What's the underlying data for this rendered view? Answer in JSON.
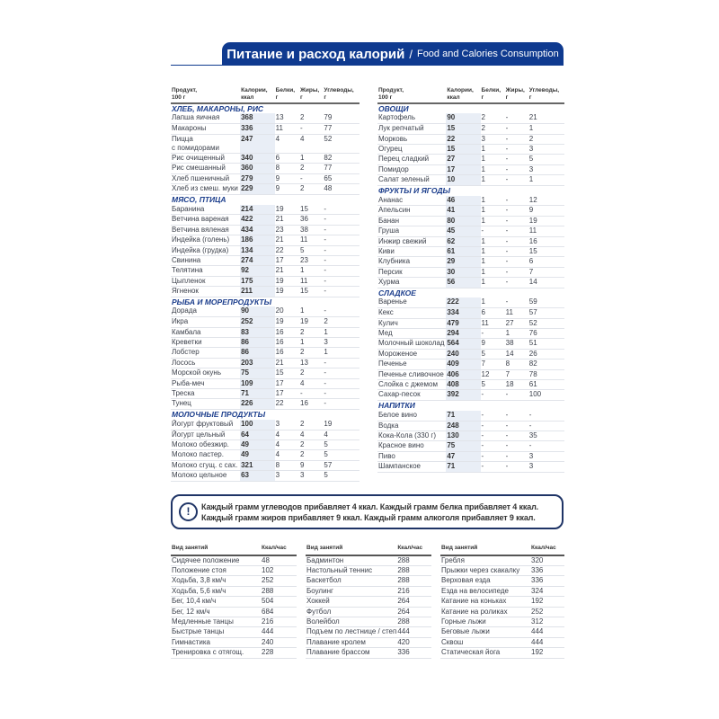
{
  "header": {
    "title_ru": "Питание и расход калорий",
    "separator": "/",
    "title_en": "Food and Calories Consumption"
  },
  "food_columns": [
    "Продукт,\n100 г",
    "Калории,\nккал",
    "Белки,\nг",
    "Жиры,\nг",
    "Углеводы,\nг"
  ],
  "food": {
    "left": [
      {
        "title": "ХЛЕБ, МАКАРОНЫ, РИС",
        "items": [
          [
            "Лапша яичная",
            "368",
            "13",
            "2",
            "79"
          ],
          [
            "Макароны",
            "336",
            "11",
            "-",
            "77"
          ],
          [
            "Пицца\nс помидорами",
            "247",
            "4",
            "4",
            "52"
          ],
          [
            "Рис очищенный",
            "340",
            "6",
            "1",
            "82"
          ],
          [
            "Рис смешанный",
            "360",
            "8",
            "2",
            "77"
          ],
          [
            "Хлеб пшеничный",
            "279",
            "9",
            "-",
            "65"
          ],
          [
            "Хлеб из смеш. муки",
            "229",
            "9",
            "2",
            "48"
          ]
        ]
      },
      {
        "title": "МЯСО, ПТИЦА",
        "items": [
          [
            "Баранина",
            "214",
            "19",
            "15",
            "-"
          ],
          [
            "Ветчина вареная",
            "422",
            "21",
            "36",
            "-"
          ],
          [
            "Ветчина вяленая",
            "434",
            "23",
            "38",
            "-"
          ],
          [
            "Индейка (голень)",
            "186",
            "21",
            "11",
            "-"
          ],
          [
            "Индейка (грудка)",
            "134",
            "22",
            "5",
            "-"
          ],
          [
            "Свинина",
            "274",
            "17",
            "23",
            "-"
          ],
          [
            "Телятина",
            "92",
            "21",
            "1",
            "-"
          ],
          [
            "Цыпленок",
            "175",
            "19",
            "11",
            "-"
          ],
          [
            "Ягненок",
            "211",
            "19",
            "15",
            "-"
          ]
        ]
      },
      {
        "title": "РЫБА И МОРЕПРОДУКТЫ",
        "items": [
          [
            "Дорада",
            "90",
            "20",
            "1",
            "-"
          ],
          [
            "Икра",
            "252",
            "19",
            "19",
            "2"
          ],
          [
            "Камбала",
            "83",
            "16",
            "2",
            "1"
          ],
          [
            "Креветки",
            "86",
            "16",
            "1",
            "3"
          ],
          [
            "Лобстер",
            "86",
            "16",
            "2",
            "1"
          ],
          [
            "Лосось",
            "203",
            "21",
            "13",
            "-"
          ],
          [
            "Морской окунь",
            "75",
            "15",
            "2",
            "-"
          ],
          [
            "Рыба-меч",
            "109",
            "17",
            "4",
            "-"
          ],
          [
            "Треска",
            "71",
            "17",
            "-",
            "-"
          ],
          [
            "Тунец",
            "226",
            "22",
            "16",
            "-"
          ]
        ]
      },
      {
        "title": "МОЛОЧНЫЕ ПРОДУКТЫ",
        "items": [
          [
            "Йогурт фруктовый",
            "100",
            "3",
            "2",
            "19"
          ],
          [
            "Йогурт цельный",
            "64",
            "4",
            "4",
            "4"
          ],
          [
            "Молоко обезжир.",
            "49",
            "4",
            "2",
            "5"
          ],
          [
            "Молоко пастер.",
            "49",
            "4",
            "2",
            "5"
          ],
          [
            "Молоко сгущ. с сах.",
            "321",
            "8",
            "9",
            "57"
          ],
          [
            "Молоко цельное",
            "63",
            "3",
            "3",
            "5"
          ]
        ]
      }
    ],
    "right": [
      {
        "title": "ОВОЩИ",
        "items": [
          [
            "Картофель",
            "90",
            "2",
            "-",
            "21"
          ],
          [
            "Лук репчатый",
            "15",
            "2",
            "-",
            "1"
          ],
          [
            "Морковь",
            "22",
            "3",
            "-",
            "2"
          ],
          [
            "Огурец",
            "15",
            "1",
            "-",
            "3"
          ],
          [
            "Перец сладкий",
            "27",
            "1",
            "-",
            "5"
          ],
          [
            "Помидор",
            "17",
            "1",
            "-",
            "3"
          ],
          [
            "Салат зеленый",
            "10",
            "1",
            "-",
            "1"
          ]
        ]
      },
      {
        "title": "ФРУКТЫ И ЯГОДЫ",
        "items": [
          [
            "Ананас",
            "46",
            "1",
            "-",
            "12"
          ],
          [
            "Апельсин",
            "41",
            "1",
            "-",
            "9"
          ],
          [
            "Банан",
            "80",
            "1",
            "-",
            "19"
          ],
          [
            "Груша",
            "45",
            "-",
            "-",
            "11"
          ],
          [
            "Инжир свежий",
            "62",
            "1",
            "-",
            "16"
          ],
          [
            "Киви",
            "61",
            "1",
            "-",
            "15"
          ],
          [
            "Клубника",
            "29",
            "1",
            "-",
            "6"
          ],
          [
            "Персик",
            "30",
            "1",
            "-",
            "7"
          ],
          [
            "Хурма",
            "56",
            "1",
            "-",
            "14"
          ]
        ]
      },
      {
        "title": "СЛАДКОЕ",
        "items": [
          [
            "Варенье",
            "222",
            "1",
            "-",
            "59"
          ],
          [
            "Кекс",
            "334",
            "6",
            "11",
            "57"
          ],
          [
            "Кулич",
            "479",
            "11",
            "27",
            "52"
          ],
          [
            "Мед",
            "294",
            "-",
            "1",
            "76"
          ],
          [
            "Молочный шоколад",
            "564",
            "9",
            "38",
            "51"
          ],
          [
            "Мороженое",
            "240",
            "5",
            "14",
            "26"
          ],
          [
            "Печенье",
            "409",
            "7",
            "8",
            "82"
          ],
          [
            "Печенье сливочное",
            "406",
            "12",
            "7",
            "78"
          ],
          [
            "Слойка с джемом",
            "408",
            "5",
            "18",
            "61"
          ],
          [
            "Сахар-песок",
            "392",
            "-",
            "-",
            "100"
          ]
        ]
      },
      {
        "title": "НАПИТКИ",
        "items": [
          [
            "Белое вино",
            "71",
            "-",
            "-",
            "-"
          ],
          [
            "Водка",
            "248",
            "-",
            "-",
            "-"
          ],
          [
            "Кока-Кола (330 г)",
            "130",
            "-",
            "-",
            "35"
          ],
          [
            "Красное вино",
            "75",
            "-",
            "-",
            "-"
          ],
          [
            "Пиво",
            "47",
            "-",
            "-",
            "3"
          ],
          [
            "Шампанское",
            "71",
            "-",
            "-",
            "3"
          ]
        ]
      }
    ]
  },
  "callout": {
    "icon": "exclamation-circle-icon",
    "line1": "Каждый грамм углеводов прибавляет 4 ккал. Каждый грамм белка прибавляет 4 ккал.",
    "line2": "Каждый грамм жиров прибавляет 9 ккал. Каждый грамм алкоголя прибавляет 9 ккал.",
    "icon_glyph": "!"
  },
  "activity_columns": [
    "Вид занятий",
    "Ккал/час"
  ],
  "activities": [
    [
      [
        "Сидячее положение",
        "48"
      ],
      [
        "Положение стоя",
        "102"
      ],
      [
        "Ходьба, 3,8 км/ч",
        "252"
      ],
      [
        "Ходьба, 5,6 км/ч",
        "288"
      ],
      [
        "Бег, 10,4 км/ч",
        "504"
      ],
      [
        "Бег, 12 км/ч",
        "684"
      ],
      [
        "Медленные танцы",
        "216"
      ],
      [
        "Быстрые танцы",
        "444"
      ],
      [
        "Гимнастика",
        "240"
      ],
      [
        "Тренировка с отягощ.",
        "228"
      ]
    ],
    [
      [
        "Бадминтон",
        "288"
      ],
      [
        "Настольный теннис",
        "288"
      ],
      [
        "Баскетбол",
        "288"
      ],
      [
        "Боулинг",
        "216"
      ],
      [
        "Хоккей",
        "264"
      ],
      [
        "Футбол",
        "264"
      ],
      [
        "Волейбол",
        "288"
      ],
      [
        "Подъем по лестнице / степ",
        "444"
      ],
      [
        "Плавание кролем",
        "420"
      ],
      [
        "Плавание брассом",
        "336"
      ]
    ],
    [
      [
        "Гребля",
        "320"
      ],
      [
        "Прыжки через скакалку",
        "336"
      ],
      [
        "Верховая езда",
        "336"
      ],
      [
        "Езда на велосипеде",
        "324"
      ],
      [
        "Катание на коньках",
        "192"
      ],
      [
        "Катание на роликах",
        "252"
      ],
      [
        "Горные лыжи",
        "312"
      ],
      [
        "Беговые лыжи",
        "444"
      ],
      [
        "Сквош",
        "444"
      ],
      [
        "Статическая йога",
        "192"
      ]
    ]
  ],
  "colors": {
    "brand_blue": "#0f3a8f",
    "section_blue": "#1c3e8c",
    "calorie_column_bg": "#e9eef6"
  }
}
